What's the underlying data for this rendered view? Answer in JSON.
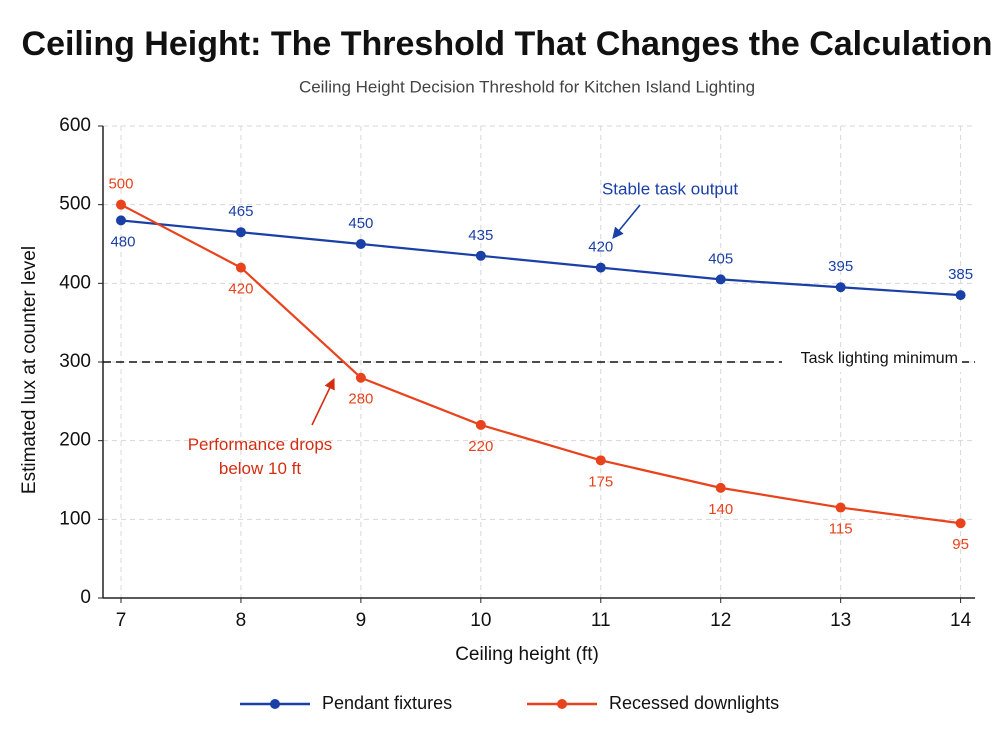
{
  "chart_data": {
    "type": "line",
    "title": "Ceiling Height: The Threshold That Changes the Calculation",
    "subtitle": "Ceiling Height Decision Threshold for Kitchen Island Lighting",
    "x_label": "Ceiling height (ft)",
    "y_label": "Estimated lux at counter level",
    "x": [
      7,
      8,
      9,
      10,
      11,
      12,
      13,
      14
    ],
    "series": [
      {
        "name": "Pendant fixtures",
        "color": "#1a3fa6",
        "values": [
          480,
          465,
          450,
          435,
          420,
          405,
          395,
          385
        ]
      },
      {
        "name": "Recessed downlights",
        "color": "#e8431c",
        "values": [
          500,
          420,
          280,
          220,
          175,
          140,
          115,
          95
        ]
      }
    ],
    "xlim": [
      6.85,
      14.12
    ],
    "xticks": [
      7,
      8,
      9,
      10,
      11,
      12,
      13,
      14
    ],
    "ylim": [
      0,
      600
    ],
    "yticks": [
      0,
      100,
      200,
      300,
      400,
      500,
      600
    ],
    "grid": true,
    "threshold": {
      "value": 300,
      "label": "Task lighting minimum"
    },
    "annotations": [
      {
        "text": "Stable task output",
        "color": "#1a3fa6"
      },
      {
        "text": "Performance drops\nbelow 10 ft",
        "color": "#d42e12"
      }
    ],
    "legend": "bottom"
  }
}
